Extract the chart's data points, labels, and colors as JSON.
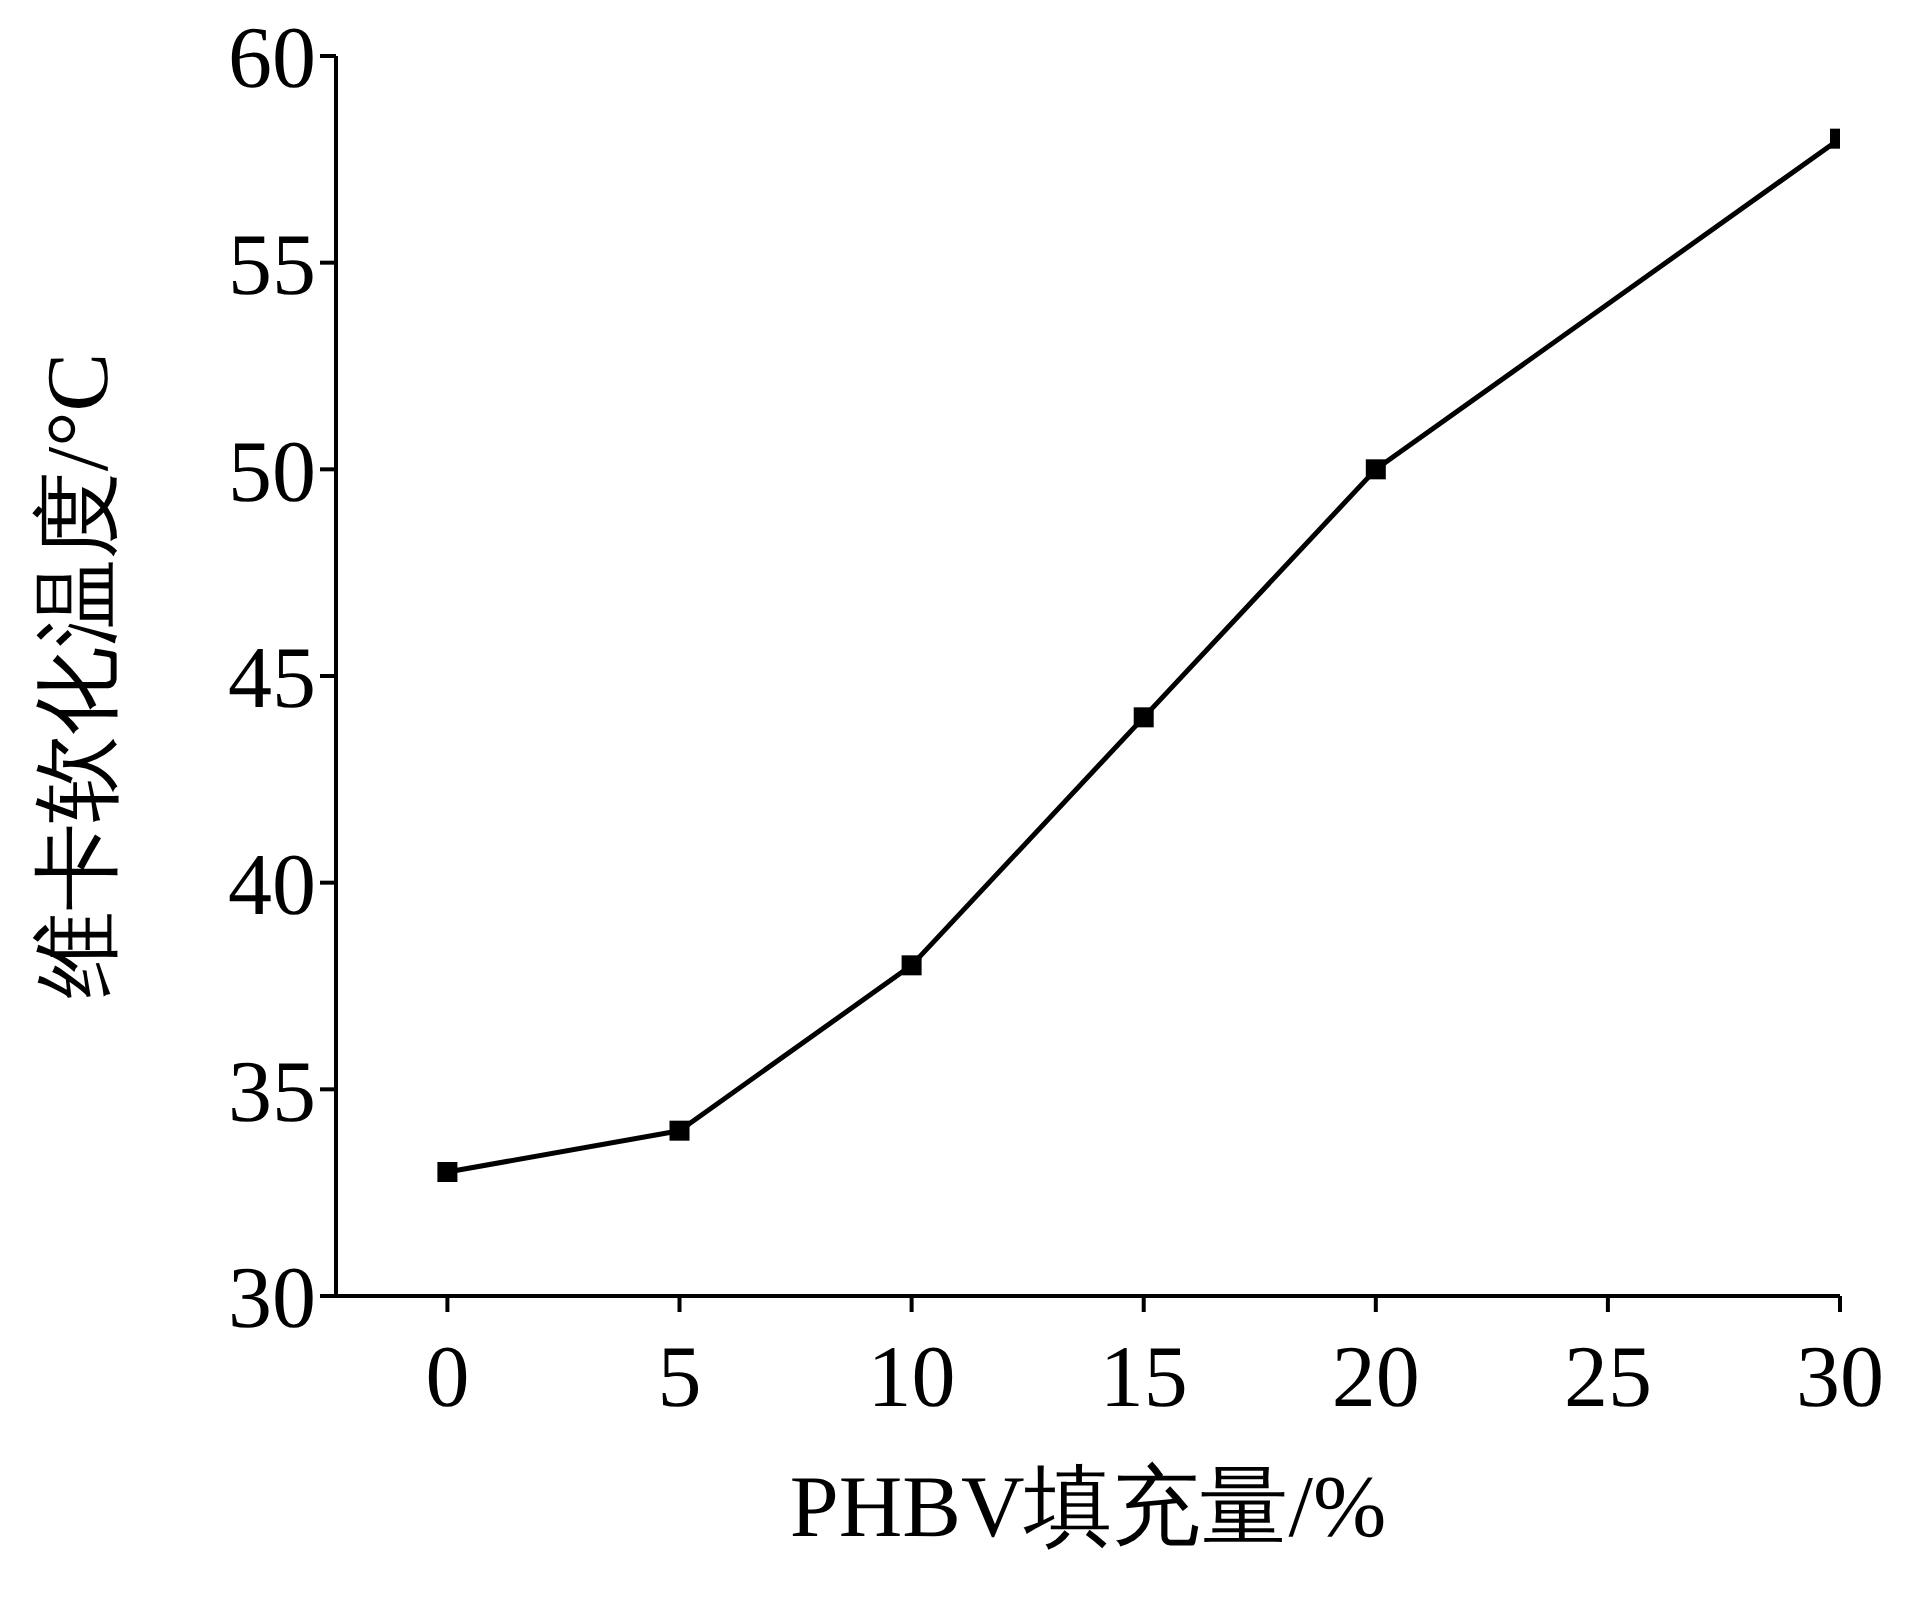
{
  "chart_data": {
    "type": "line",
    "xlabel": "PHBV填充量/%",
    "ylabel": "维卡软化温度/°C",
    "x": [
      0,
      5,
      10,
      15,
      20,
      30
    ],
    "series": [
      {
        "color": "#000000",
        "values": [
          33,
          34,
          38,
          44,
          50,
          58
        ]
      }
    ],
    "xlim": [
      -2.4,
      30
    ],
    "xticks": [
      0,
      5,
      10,
      15,
      20,
      25,
      30
    ],
    "ylim": [
      30,
      60
    ],
    "yticks": [
      30,
      35,
      40,
      45,
      50,
      55,
      60
    ],
    "grid": false,
    "legend": false,
    "marker": "square",
    "line_style": "solid"
  }
}
